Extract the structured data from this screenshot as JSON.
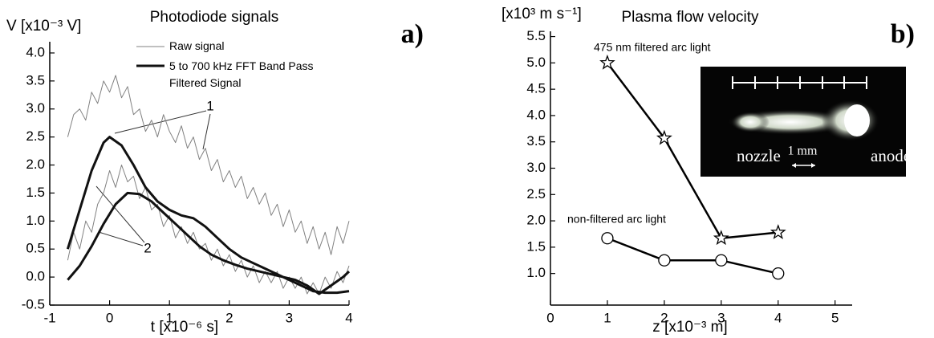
{
  "chart_data": [
    {
      "type": "line",
      "panel_label": "a)",
      "title": "Photodiode signals",
      "x_label": "t [x10⁻⁶ s]",
      "y_label": "V [x10⁻³ V]",
      "xlim": [
        -1,
        4
      ],
      "ylim": [
        -0.5,
        4.2
      ],
      "xticks": [
        -1,
        0,
        1,
        2,
        3,
        4
      ],
      "yticks": [
        -0.5,
        {
          "value": 0,
          "label": "0.0"
        },
        0.5,
        {
          "value": 1,
          "label": "1.0"
        },
        1.5,
        {
          "value": 2,
          "label": "2.0"
        },
        2.5,
        {
          "value": 3,
          "label": "3.0"
        },
        3.5,
        {
          "value": 4,
          "label": "4.0"
        }
      ],
      "annotations": [
        "1",
        "2"
      ],
      "series": [
        {
          "name": "Raw signal",
          "color": "#808080",
          "width": 1,
          "x": [
            -0.7,
            -0.6,
            -0.5,
            -0.4,
            -0.3,
            -0.2,
            -0.1,
            0,
            0.1,
            0.2,
            0.3,
            0.4,
            0.5,
            0.6,
            0.7,
            0.8,
            0.9,
            1.0,
            1.1,
            1.2,
            1.3,
            1.4,
            1.5,
            1.6,
            1.7,
            1.8,
            1.9,
            2.0,
            2.1,
            2.2,
            2.3,
            2.4,
            2.5,
            2.6,
            2.7,
            2.8,
            2.9,
            3.0,
            3.1,
            3.2,
            3.3,
            3.4,
            3.5,
            3.6,
            3.7,
            3.8,
            3.9,
            4.0,
            null,
            -0.7,
            -0.6,
            -0.5,
            -0.4,
            -0.3,
            -0.2,
            -0.1,
            0,
            0.1,
            0.2,
            0.3,
            0.4,
            0.5,
            0.6,
            0.7,
            0.8,
            0.9,
            1.0,
            1.1,
            1.2,
            1.3,
            1.4,
            1.5,
            1.6,
            1.7,
            1.8,
            1.9,
            2.0,
            2.1,
            2.2,
            2.3,
            2.4,
            2.5,
            2.6,
            2.7,
            2.8,
            2.9,
            3.0,
            3.1,
            3.2,
            3.3,
            3.4,
            3.5,
            3.6,
            3.7,
            3.8,
            3.9,
            4.0
          ],
          "values": [
            2.5,
            2.9,
            3.0,
            2.8,
            3.3,
            3.1,
            3.5,
            3.3,
            3.6,
            3.2,
            3.4,
            2.9,
            3.0,
            2.6,
            2.8,
            2.5,
            2.9,
            2.6,
            2.4,
            2.7,
            2.3,
            2.5,
            2.1,
            2.3,
            1.9,
            2.1,
            1.7,
            1.9,
            1.6,
            1.8,
            1.4,
            1.6,
            1.3,
            1.5,
            1.1,
            1.3,
            0.9,
            1.2,
            0.8,
            1.0,
            0.6,
            0.9,
            0.5,
            0.8,
            0.4,
            0.9,
            0.6,
            1.0,
            null,
            0.3,
            0.8,
            0.5,
            1.0,
            0.8,
            1.3,
            1.5,
            1.9,
            1.6,
            2.0,
            1.7,
            1.8,
            1.4,
            1.6,
            1.2,
            1.3,
            0.9,
            1.1,
            0.7,
            0.9,
            0.6,
            0.8,
            0.5,
            0.6,
            0.3,
            0.5,
            0.2,
            0.4,
            0.1,
            0.3,
            0.0,
            0.2,
            -0.1,
            0.1,
            -0.1,
            0.1,
            -0.2,
            0.0,
            -0.2,
            0.0,
            -0.3,
            -0.1,
            -0.3,
            0.0,
            -0.2,
            0.1,
            -0.1,
            0.2
          ]
        },
        {
          "name": "5 to 700 kHz FFT Band Pass Filtered Signal",
          "color": "#111111",
          "width": 3,
          "x": [
            -0.7,
            -0.5,
            -0.3,
            -0.1,
            0,
            0.2,
            0.4,
            0.6,
            0.8,
            1.0,
            1.2,
            1.4,
            1.6,
            1.8,
            2.0,
            2.2,
            2.4,
            2.6,
            2.8,
            3.0,
            3.2,
            3.4,
            3.6,
            3.8,
            4.0,
            null,
            -0.7,
            -0.5,
            -0.3,
            -0.1,
            0.1,
            0.3,
            0.5,
            0.7,
            0.9,
            1.1,
            1.3,
            1.5,
            1.7,
            1.9,
            2.1,
            2.3,
            2.5,
            2.7,
            2.9,
            3.1,
            3.3,
            3.5,
            3.7,
            3.9,
            4.0
          ],
          "values": [
            0.5,
            1.2,
            1.9,
            2.4,
            2.5,
            2.35,
            2.0,
            1.6,
            1.35,
            1.2,
            1.1,
            1.05,
            0.9,
            0.7,
            0.5,
            0.35,
            0.25,
            0.15,
            0.05,
            -0.05,
            -0.15,
            -0.25,
            -0.28,
            -0.28,
            -0.25,
            null,
            -0.05,
            0.2,
            0.55,
            0.95,
            1.3,
            1.5,
            1.48,
            1.35,
            1.15,
            0.95,
            0.75,
            0.55,
            0.4,
            0.3,
            0.22,
            0.15,
            0.1,
            0.05,
            0.0,
            -0.05,
            -0.15,
            -0.3,
            -0.15,
            0.0,
            0.1
          ]
        }
      ]
    },
    {
      "type": "line",
      "panel_label": "b)",
      "title": "Plasma flow velocity",
      "x_label": "z [x10⁻³ m]",
      "y_label": "[x10³ m s⁻¹]",
      "xlim": [
        0,
        5.3
      ],
      "ylim": [
        0.4,
        5.6
      ],
      "xticks": [
        0,
        1,
        2,
        3,
        4,
        5
      ],
      "yticks": [
        {
          "value": 1,
          "label": "1.0"
        },
        1.5,
        {
          "value": 2,
          "label": "2.0"
        },
        2.5,
        {
          "value": 3,
          "label": "3.0"
        },
        3.5,
        {
          "value": 4,
          "label": "4.0"
        },
        4.5,
        {
          "value": 5,
          "label": "5.0"
        },
        5.5
      ],
      "inset_labels": [
        "nozzle",
        "1 mm",
        "anode"
      ],
      "series": [
        {
          "name": "475 nm filtered arc light",
          "color": "#000000",
          "width": 2.5,
          "marker": "star",
          "x": [
            1,
            2,
            3,
            4
          ],
          "values": [
            5.0,
            3.57,
            1.67,
            1.78
          ]
        },
        {
          "name": "non-filtered arc light",
          "color": "#000000",
          "width": 2.5,
          "marker": "circle",
          "x": [
            1,
            2,
            3,
            4
          ],
          "values": [
            1.67,
            1.25,
            1.25,
            1.0
          ]
        }
      ]
    }
  ]
}
